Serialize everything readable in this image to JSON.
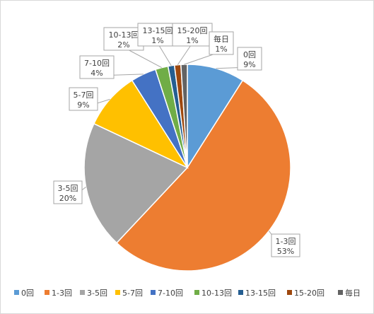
{
  "chart_data": {
    "type": "pie",
    "categories": [
      "0回",
      "1-3回",
      "3-5回",
      "5-7回",
      "7-10回",
      "10-13回",
      "13-15回",
      "15-20回",
      "毎日"
    ],
    "values": [
      9,
      53,
      20,
      9,
      4,
      2,
      1,
      1,
      1
    ],
    "value_labels": [
      "9%",
      "53%",
      "20%",
      "9%",
      "4%",
      "2%",
      "1%",
      "1%",
      "1%"
    ],
    "colors": [
      "#5b9bd5",
      "#ed7d31",
      "#a5a5a5",
      "#ffc000",
      "#4472c4",
      "#70ad47",
      "#255e91",
      "#9e480e",
      "#636363"
    ],
    "legend_position": "bottom",
    "data_label_style": "callout with category name and percentage",
    "start_angle": "12 o'clock, clockwise"
  }
}
